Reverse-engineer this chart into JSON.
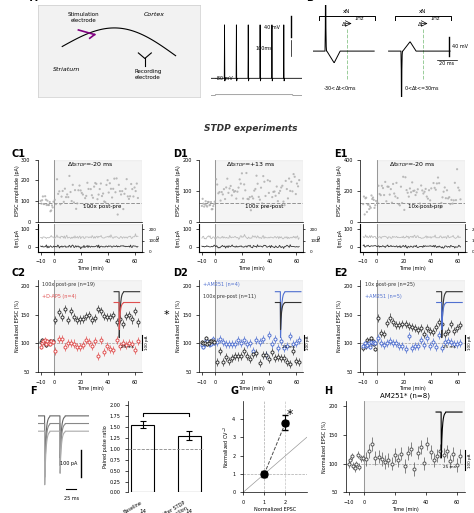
{
  "stdp_banner": "STDP experiments",
  "stdp_banner_color": "#d4aee8",
  "background_color": "#ffffff",
  "shaded_color": "#e8e8e8",
  "C1_title": "Δt$_{STDP}$=-20 ms",
  "D1_title": "Δt$_{STDP}$=+13 ms",
  "E1_title": "Δt$_{STDP}$=-20 ms",
  "C1_label": "100x post-pre",
  "D1_label": "100x pre-post",
  "E1_label": "10x post-pre",
  "C2_s1_label": "100x post-pre (n=19)",
  "C2_s2_label": "+D-AP5 (n=4)",
  "D2_s1_label": "+AM251 (n=4)",
  "D2_s2_label": "100x pre-post (n=11)",
  "E2_s1_label": "10x post-pre (n=25)",
  "E2_s2_label": "+AM251 (n=5)",
  "H_title": "AM251* (n=8)",
  "scatter_color": "#aaaaaa",
  "black_color": "#333333",
  "red_color": "#e05050",
  "blue_color": "#5070d0",
  "F_bar_baseline": 1.55,
  "F_bar_after": 1.3,
  "F_n": 14,
  "G_p1x": 1.0,
  "G_p1y": 1.0,
  "G_p2x": 2.0,
  "G_p2y": 3.8
}
